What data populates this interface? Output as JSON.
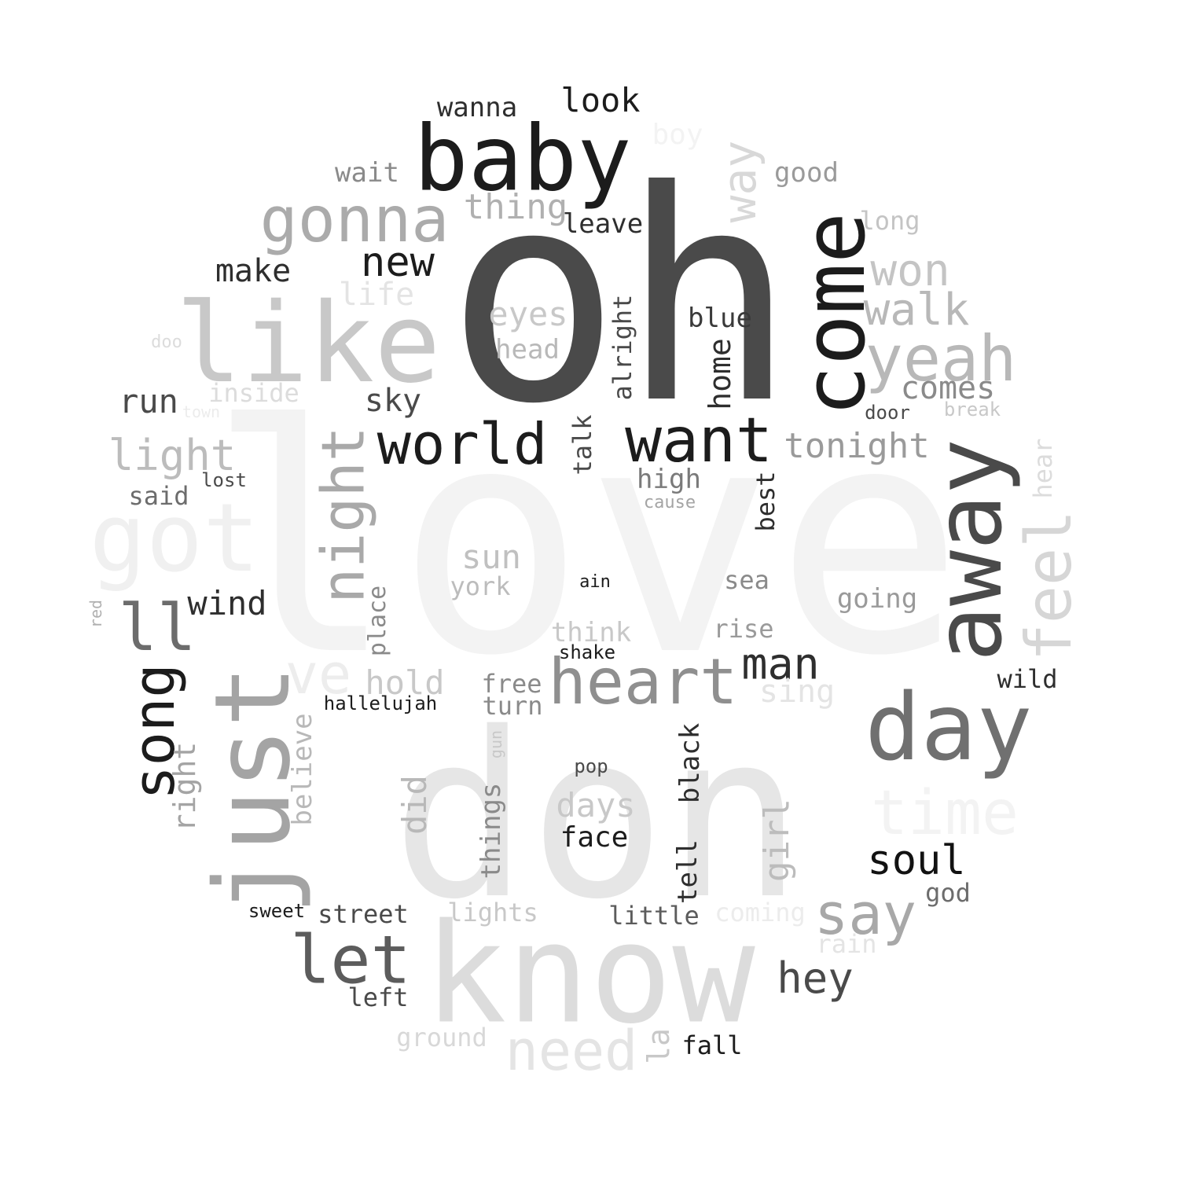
{
  "words": [
    {
      "text": "love",
      "color": "#f3f3f3"
    },
    {
      "text": "oh",
      "color": "#4a4a4a"
    },
    {
      "text": "don",
      "color": "#e6e6e6"
    },
    {
      "text": "know",
      "color": "#dcdcdc"
    },
    {
      "text": "baby",
      "color": "#1c1c1c"
    },
    {
      "text": "like",
      "color": "#c8c8c8"
    },
    {
      "text": "come",
      "color": "#1c1c1c"
    },
    {
      "text": "away",
      "color": "#4a4a4a"
    },
    {
      "text": "just",
      "color": "#a4a4a4"
    },
    {
      "text": "got",
      "color": "#f0f0f0"
    },
    {
      "text": "gonna",
      "color": "#ababab"
    },
    {
      "text": "want",
      "color": "#1c1c1c"
    },
    {
      "text": "world",
      "color": "#1c1c1c"
    },
    {
      "text": "night",
      "color": "#a9a9a9"
    },
    {
      "text": "heart",
      "color": "#8f8f8f"
    },
    {
      "text": "day",
      "color": "#707070"
    },
    {
      "text": "yeah",
      "color": "#b8b8b8"
    },
    {
      "text": "need",
      "color": "#e4e4e4"
    },
    {
      "text": "let",
      "color": "#5c5c5c"
    },
    {
      "text": "song",
      "color": "#1c1c1c"
    },
    {
      "text": "ll",
      "color": "#6c6c6c"
    },
    {
      "text": "feel",
      "color": "#d6d6d6"
    },
    {
      "text": "time",
      "color": "#f3f3f3"
    },
    {
      "text": "say",
      "color": "#a8a8a8"
    },
    {
      "text": "ve",
      "color": "#ededed"
    },
    {
      "text": "way",
      "color": "#d8d8d8"
    },
    {
      "text": "won",
      "color": "#c4c4c4"
    },
    {
      "text": "walk",
      "color": "#b8b8b8"
    },
    {
      "text": "new",
      "color": "#1c1c1c"
    },
    {
      "text": "light",
      "color": "#bcbcbc"
    },
    {
      "text": "man",
      "color": "#2e2e2e"
    },
    {
      "text": "soul",
      "color": "#121212"
    },
    {
      "text": "hey",
      "color": "#4a4a4a"
    },
    {
      "text": "tonight",
      "color": "#9a9a9a"
    },
    {
      "text": "look",
      "color": "#1c1c1c"
    },
    {
      "text": "thing",
      "color": "#b0b0b0"
    },
    {
      "text": "wind",
      "color": "#2e2e2e"
    },
    {
      "text": "make",
      "color": "#2e2e2e"
    },
    {
      "text": "eyes",
      "color": "#c8c8c8"
    },
    {
      "text": "sun",
      "color": "#c0c0c0"
    },
    {
      "text": "days",
      "color": "#c8c8c8"
    },
    {
      "text": "face",
      "color": "#1c1c1c"
    },
    {
      "text": "hold",
      "color": "#c8c8c8"
    },
    {
      "text": "run",
      "color": "#4a4a4a"
    },
    {
      "text": "sky",
      "color": "#4a4a4a"
    },
    {
      "text": "comes",
      "color": "#8a8a8a"
    },
    {
      "text": "wanna",
      "color": "#2e2e2e"
    },
    {
      "text": "leave",
      "color": "#2e2e2e"
    },
    {
      "text": "life",
      "color": "#e4e4e4"
    },
    {
      "text": "head",
      "color": "#b8b8b8"
    },
    {
      "text": "blue",
      "color": "#3a3a3a"
    },
    {
      "text": "home",
      "color": "#2e2e2e"
    },
    {
      "text": "alright",
      "color": "#4a4a4a"
    },
    {
      "text": "talk",
      "color": "#4a4a4a"
    },
    {
      "text": "high",
      "color": "#7a7a7a"
    },
    {
      "text": "best",
      "color": "#2e2e2e"
    },
    {
      "text": "wait",
      "color": "#8a8a8a"
    },
    {
      "text": "good",
      "color": "#9a9a9a"
    },
    {
      "text": "long",
      "color": "#c4c4c4"
    },
    {
      "text": "boy",
      "color": "#f3f3f3"
    },
    {
      "text": "inside",
      "color": "#dcdcdc"
    },
    {
      "text": "said",
      "color": "#6c6c6c"
    },
    {
      "text": "lost",
      "color": "#4a4a4a"
    },
    {
      "text": "place",
      "color": "#8a8a8a"
    },
    {
      "text": "believe",
      "color": "#b8b8b8"
    },
    {
      "text": "right",
      "color": "#a4a4a4"
    },
    {
      "text": "did",
      "color": "#b8b8b8"
    },
    {
      "text": "things",
      "color": "#8a8a8a"
    },
    {
      "text": "tell",
      "color": "#2e2e2e"
    },
    {
      "text": "black",
      "color": "#2e2e2e"
    },
    {
      "text": "girl",
      "color": "#bcbcbc"
    },
    {
      "text": "sea",
      "color": "#8a8a8a"
    },
    {
      "text": "rise",
      "color": "#9a9a9a"
    },
    {
      "text": "going",
      "color": "#9a9a9a"
    },
    {
      "text": "sing",
      "color": "#e4e4e4"
    },
    {
      "text": "wild",
      "color": "#2e2e2e"
    },
    {
      "text": "hear",
      "color": "#dcdcdc"
    },
    {
      "text": "door",
      "color": "#4a4a4a"
    },
    {
      "text": "break",
      "color": "#c8c8c8"
    },
    {
      "text": "york",
      "color": "#bcbcbc"
    },
    {
      "text": "think",
      "color": "#c8c8c8"
    },
    {
      "text": "shake",
      "color": "#1c1c1c"
    },
    {
      "text": "free",
      "color": "#8a8a8a"
    },
    {
      "text": "turn",
      "color": "#8a8a8a"
    },
    {
      "text": "hallelujah",
      "color": "#1c1c1c"
    },
    {
      "text": "gun",
      "color": "#c8c8c8"
    },
    {
      "text": "pop",
      "color": "#4a4a4a"
    },
    {
      "text": "sweet",
      "color": "#1c1c1c"
    },
    {
      "text": "street",
      "color": "#4a4a4a"
    },
    {
      "text": "lights",
      "color": "#c8c8c8"
    },
    {
      "text": "little",
      "color": "#5c5c5c"
    },
    {
      "text": "coming",
      "color": "#ececec"
    },
    {
      "text": "rain",
      "color": "#e4e4e4"
    },
    {
      "text": "god",
      "color": "#6c6c6c"
    },
    {
      "text": "left",
      "color": "#4a4a4a"
    },
    {
      "text": "ground",
      "color": "#d8d8d8"
    },
    {
      "text": "la",
      "color": "#c8c8c8"
    },
    {
      "text": "fall",
      "color": "#1c1c1c"
    },
    {
      "text": "ain",
      "color": "#1c1c1c"
    },
    {
      "text": "cause",
      "color": "#a4a4a4"
    },
    {
      "text": "doo",
      "color": "#dcdcdc"
    },
    {
      "text": "town",
      "color": "#ececec"
    },
    {
      "text": "red",
      "color": "#b0b0b0"
    }
  ]
}
